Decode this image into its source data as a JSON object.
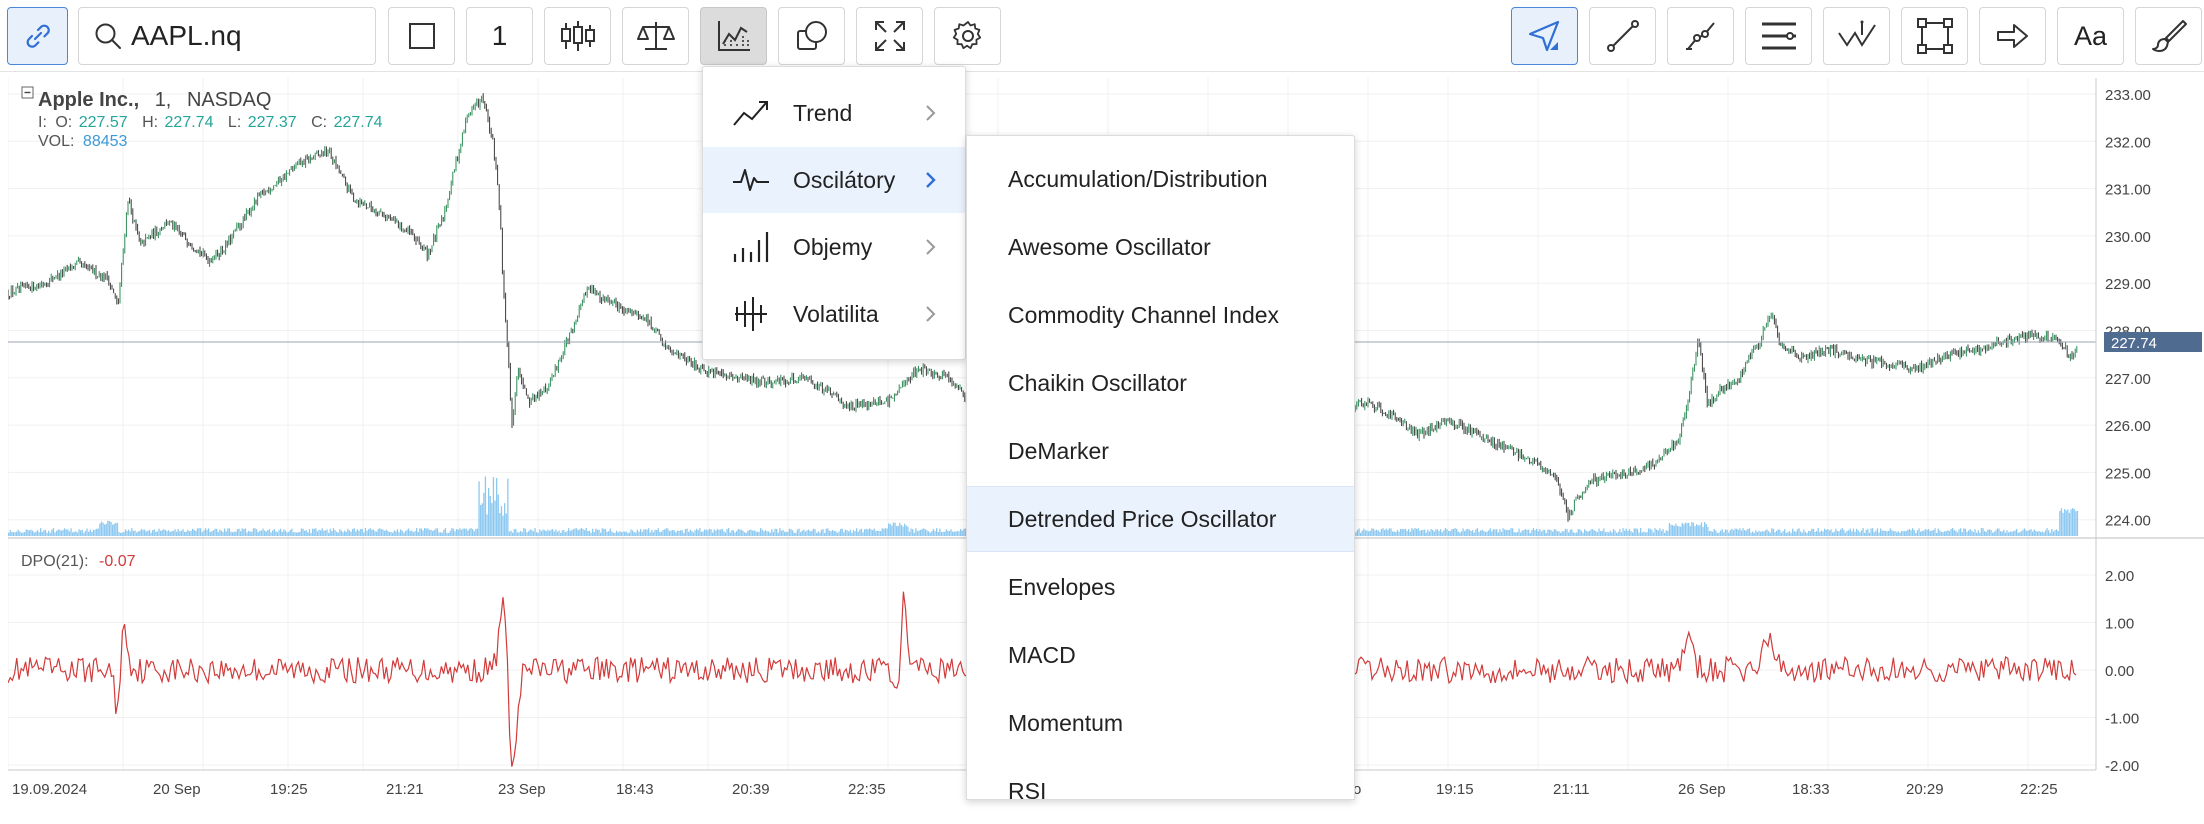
{
  "toolbar": {
    "symbol": "AAPL.nq",
    "interval": "1",
    "text_tool_label": "Aa"
  },
  "chart": {
    "title": "Apple Inc.,",
    "interval": "1,",
    "exchange": "NASDAQ",
    "ohlc_prefix": "I:",
    "o_label": "O:",
    "o_value": "227.57",
    "h_label": "H:",
    "h_value": "227.74",
    "l_label": "L:",
    "l_value": "227.37",
    "c_label": "C:",
    "c_value": "227.74",
    "vol_label": "VOL:",
    "vol_value": "88453",
    "last_price": "227.74",
    "price_ticks": [
      "233.00",
      "232.00",
      "231.00",
      "230.00",
      "229.00",
      "228.00",
      "227.00",
      "226.00",
      "225.00",
      "224.00"
    ],
    "indicator_label": "DPO(21):",
    "indicator_value": "-0.07",
    "indicator_ticks": [
      "2.00",
      "1.00",
      "0.00",
      "-1.00",
      "-2.00"
    ],
    "time_ticks": [
      "19.09.2024",
      "20 Sep",
      "19:25",
      "21:21",
      "23 Sep",
      "18:43",
      "20:39",
      "22:35",
      "o",
      "19:15",
      "21:11",
      "26 Sep",
      "18:33",
      "20:29",
      "22:25"
    ]
  },
  "menu": {
    "categories": [
      {
        "label": "Trend",
        "icon": "trend-icon"
      },
      {
        "label": "Oscilátory",
        "icon": "oscillator-icon"
      },
      {
        "label": "Objemy",
        "icon": "volume-bars-icon"
      },
      {
        "label": "Volatilita",
        "icon": "volatility-icon"
      }
    ],
    "oscillators": [
      "Accumulation/Distribution",
      "Awesome Oscillator",
      "Commodity Channel Index",
      "Chaikin Oscillator",
      "DeMarker",
      "Detrended Price Oscillator",
      "Envelopes",
      "MACD",
      "Momentum",
      "RSI"
    ]
  },
  "colors": {
    "accent": "#2f6fd6",
    "up": "#26a69a",
    "down": "#c0392b",
    "volume": "#8cc8f0",
    "indicator": "#d23b3b",
    "last_price_bg": "#4f6b8f"
  }
}
